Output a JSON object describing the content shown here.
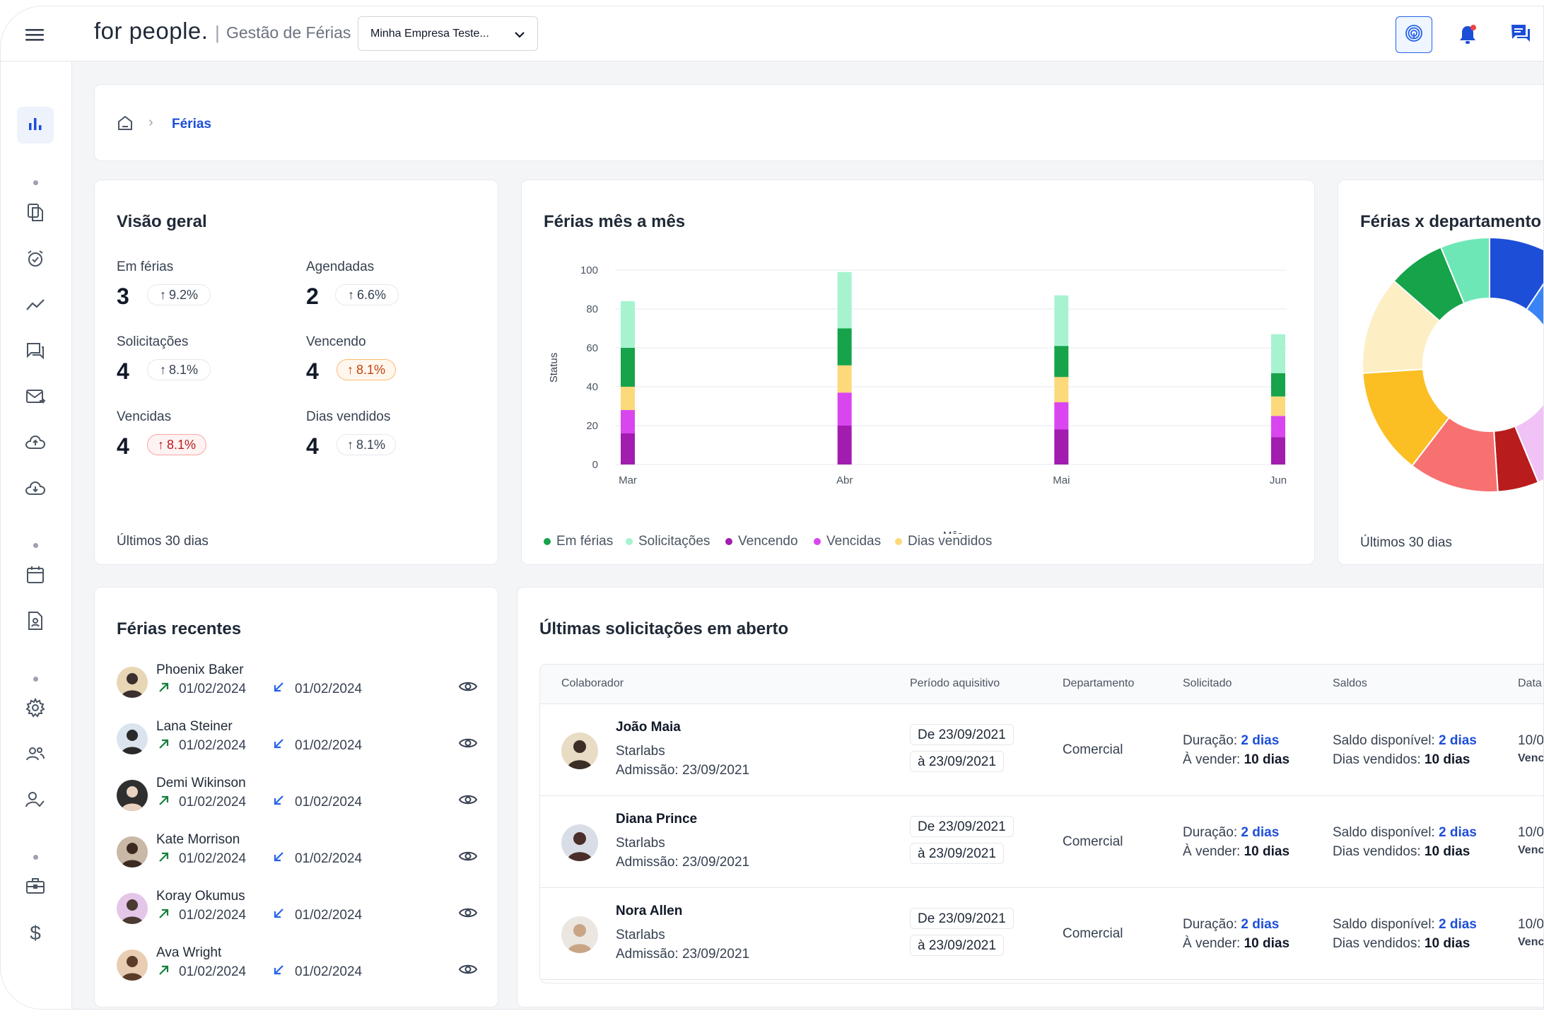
{
  "header": {
    "brand": "for people.",
    "separator": "|",
    "module_title": "Gestão de Férias",
    "company_select": "Minha Empresa Teste..."
  },
  "breadcrumb": {
    "current": "Férias"
  },
  "overview": {
    "title": "Visão geral",
    "stats": [
      {
        "label": "Em férias",
        "value": "3",
        "change": "9.2%",
        "tone": "neutral"
      },
      {
        "label": "Agendadas",
        "value": "2",
        "change": "6.6%",
        "tone": "neutral"
      },
      {
        "label": "Solicitações",
        "value": "4",
        "change": "8.1%",
        "tone": "neutral"
      },
      {
        "label": "Vencendo",
        "value": "4",
        "change": "8.1%",
        "tone": "warn"
      },
      {
        "label": "Vencidas",
        "value": "4",
        "change": "8.1%",
        "tone": "bad"
      },
      {
        "label": "Dias vendidos",
        "value": "4",
        "change": "8.1%",
        "tone": "neutral"
      }
    ],
    "footer": "Últimos 30 dias"
  },
  "monthly": {
    "title": "Férias mês a mês",
    "legend": [
      "Em férias",
      "Solicitações",
      "Vencendo",
      "Vencidas",
      "Dias vendidos"
    ]
  },
  "chart_data": [
    {
      "type": "bar",
      "stacked": true,
      "title": "Férias mês a mês",
      "xlabel": "Mês",
      "ylabel": "Status",
      "ylim": [
        0,
        100
      ],
      "yticks": [
        0,
        20,
        40,
        60,
        80,
        100
      ],
      "categories": [
        "Mar",
        "Abr",
        "Mai",
        "Jun"
      ],
      "series": [
        {
          "name": "Vencendo",
          "color": "#a21caf",
          "values": [
            16,
            20,
            18,
            14
          ]
        },
        {
          "name": "Vencidas",
          "color": "#d946ef",
          "values": [
            12,
            17,
            14,
            11
          ]
        },
        {
          "name": "Dias vendidos",
          "color": "#fcd97a",
          "values": [
            12,
            14,
            13,
            10
          ]
        },
        {
          "name": "Em férias",
          "color": "#16a34a",
          "values": [
            20,
            19,
            16,
            12
          ]
        },
        {
          "name": "Solicitações",
          "color": "#a7f3d0",
          "values": [
            24,
            29,
            26,
            20
          ]
        }
      ],
      "grid": true,
      "legend": "bottom"
    },
    {
      "type": "pie",
      "donut": true,
      "title": "Férias x departamento",
      "slices": [
        {
          "value": 9,
          "color": "#1d4ed8"
        },
        {
          "value": 8,
          "color": "#3b82f6"
        },
        {
          "value": 6,
          "color": "#6366f1"
        },
        {
          "value": 8,
          "color": "#c026d3"
        },
        {
          "value": 11,
          "color": "#f0c2f5"
        },
        {
          "value": 5,
          "color": "#b91c1c"
        },
        {
          "value": 11,
          "color": "#f87171"
        },
        {
          "value": 13,
          "color": "#fbbf24"
        },
        {
          "value": 12,
          "color": "#fdeec4"
        },
        {
          "value": 7,
          "color": "#16a34a"
        },
        {
          "value": 6,
          "color": "#6ee7b7"
        }
      ]
    }
  ],
  "department": {
    "title": "Férias x departamento",
    "footer": "Últimos 30 dias"
  },
  "recent": {
    "title": "Férias recentes",
    "items": [
      {
        "name": "Phoenix Baker",
        "start": "01/02/2024",
        "end": "01/02/2024"
      },
      {
        "name": "Lana Steiner",
        "start": "01/02/2024",
        "end": "01/02/2024"
      },
      {
        "name": "Demi Wikinson",
        "start": "01/02/2024",
        "end": "01/02/2024"
      },
      {
        "name": "Kate Morrison",
        "start": "01/02/2024",
        "end": "01/02/2024"
      },
      {
        "name": "Koray Okumus",
        "start": "01/02/2024",
        "end": "01/02/2024"
      },
      {
        "name": "Ava Wright",
        "start": "01/02/2024",
        "end": "01/02/2024"
      }
    ]
  },
  "requests": {
    "title": "Últimas solicitações em aberto",
    "columns": [
      "Colaborador",
      "Período aquisitivo",
      "Departamento",
      "Solicitado",
      "Saldos",
      "Data"
    ],
    "rows": [
      {
        "name": "João Maia",
        "company": "Starlabs",
        "admission": "Admissão: 23/09/2021",
        "period_from": "De 23/09/2021",
        "period_to": "à 23/09/2021",
        "department": "Comercial",
        "duration_label": "Duração:",
        "duration": "2 dias",
        "sell_label": "À vender:",
        "sell": "10 dias",
        "balance_label": "Saldo disponível:",
        "balance": "2 dias",
        "sold_label": "Dias vendidos:",
        "sold": "10 dias",
        "date": "10/0",
        "date2": "Venc"
      },
      {
        "name": "Diana Prince",
        "company": "Starlabs",
        "admission": "Admissão: 23/09/2021",
        "period_from": "De 23/09/2021",
        "period_to": "à 23/09/2021",
        "department": "Comercial",
        "duration_label": "Duração:",
        "duration": "2 dias",
        "sell_label": "À vender:",
        "sell": "10 dias",
        "balance_label": "Saldo disponível:",
        "balance": "2 dias",
        "sold_label": "Dias vendidos:",
        "sold": "10 dias",
        "date": "10/0",
        "date2": "Venc"
      },
      {
        "name": "Nora Allen",
        "company": "Starlabs",
        "admission": "Admissão: 23/09/2021",
        "period_from": "De 23/09/2021",
        "period_to": "à 23/09/2021",
        "department": "Comercial",
        "duration_label": "Duração:",
        "duration": "2 dias",
        "sell_label": "À vender:",
        "sell": "10 dias",
        "balance_label": "Saldo disponível:",
        "balance": "2 dias",
        "sold_label": "Dias vendidos:",
        "sold": "10 dias",
        "date": "10/0",
        "date2": "Venc"
      }
    ]
  },
  "colors": {
    "primary": "#1d4ed8",
    "up_green": "#15803d",
    "down_blue": "#2563eb"
  }
}
